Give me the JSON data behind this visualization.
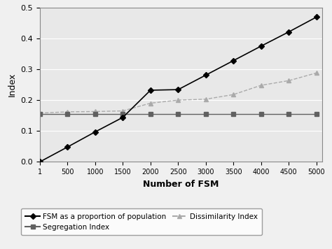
{
  "x": [
    1,
    500,
    1000,
    1500,
    2000,
    2500,
    3000,
    3500,
    4000,
    4500,
    5000
  ],
  "fsm_proportion": [
    0.0,
    0.048,
    0.097,
    0.144,
    0.232,
    0.234,
    0.281,
    0.328,
    0.375,
    0.421,
    0.469
  ],
  "segregation_index": [
    0.155,
    0.155,
    0.155,
    0.155,
    0.155,
    0.155,
    0.155,
    0.155,
    0.155,
    0.155,
    0.155
  ],
  "dissimilarity_index": [
    0.158,
    0.162,
    0.163,
    0.165,
    0.19,
    0.2,
    0.203,
    0.218,
    0.248,
    0.263,
    0.288
  ],
  "xlabel": "Number of FSM",
  "ylabel": "Index",
  "ylim": [
    0,
    0.5
  ],
  "yticks": [
    0,
    0.1,
    0.2,
    0.3,
    0.4,
    0.5
  ],
  "xtick_labels": [
    "1",
    "500",
    "1000",
    "1500",
    "2000",
    "2500",
    "3000",
    "3500",
    "4000",
    "4500",
    "5000"
  ],
  "legend_fsm": "FSM as a proportion of population",
  "legend_seg": "Segregation Index",
  "legend_dis": "Dissimilarity Index",
  "fsm_color": "#000000",
  "seg_color": "#606060",
  "dis_color": "#aaaaaa",
  "plot_bg_color": "#e8e8e8",
  "fig_bg_color": "#f0f0f0",
  "grid_color": "#ffffff"
}
